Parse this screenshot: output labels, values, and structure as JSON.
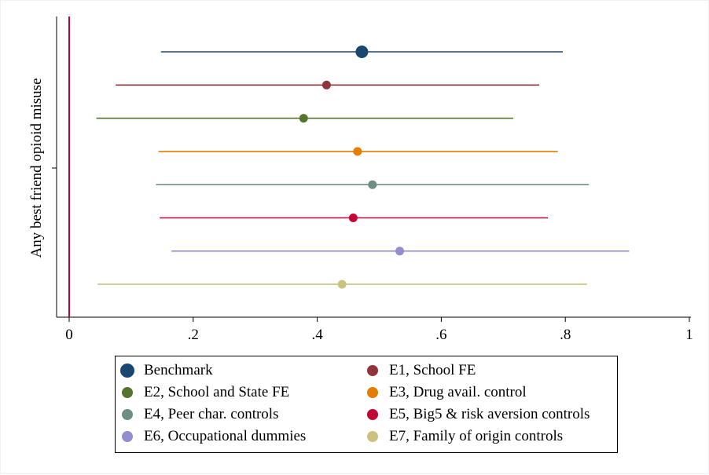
{
  "chart_data": {
    "type": "scatter",
    "ylabel": "Any best friend opioid misuse",
    "xlabel": "",
    "xlim": [
      -0.02,
      1.0
    ],
    "x_ticks": [
      {
        "value": 0,
        "label": "0"
      },
      {
        "value": 0.2,
        "label": ".2"
      },
      {
        "value": 0.4,
        "label": ".4"
      },
      {
        "value": 0.6,
        "label": ".6"
      },
      {
        "value": 0.8,
        "label": ".8"
      },
      {
        "value": 1,
        "label": "1"
      }
    ],
    "reference_line": {
      "x": 0,
      "color": "#c0003c"
    },
    "grid": false,
    "legend_position": "bottom",
    "series": [
      {
        "name": "Benchmark",
        "estimate": 0.472,
        "ci_low": 0.148,
        "ci_high": 0.796,
        "color": "#1a476f"
      },
      {
        "name": "E1, School FE",
        "estimate": 0.415,
        "ci_low": 0.075,
        "ci_high": 0.758,
        "color": "#90353b"
      },
      {
        "name": "E2, School and State FE",
        "estimate": 0.378,
        "ci_low": 0.044,
        "ci_high": 0.716,
        "color": "#55752f"
      },
      {
        "name": "E3, Drug avail. control",
        "estimate": 0.465,
        "ci_low": 0.144,
        "ci_high": 0.788,
        "color": "#e37e00"
      },
      {
        "name": "E4, Peer char. controls",
        "estimate": 0.489,
        "ci_low": 0.14,
        "ci_high": 0.838,
        "color": "#6e8e84"
      },
      {
        "name": "E5, Big5 & risk aversion controls",
        "estimate": 0.458,
        "ci_low": 0.146,
        "ci_high": 0.772,
        "color": "#c10534"
      },
      {
        "name": "E6, Occupational dummies",
        "estimate": 0.533,
        "ci_low": 0.165,
        "ci_high": 0.903,
        "color": "#938dd2"
      },
      {
        "name": "E7, Family of origin controls",
        "estimate": 0.44,
        "ci_low": 0.046,
        "ci_high": 0.835,
        "color": "#cac27e"
      }
    ]
  }
}
